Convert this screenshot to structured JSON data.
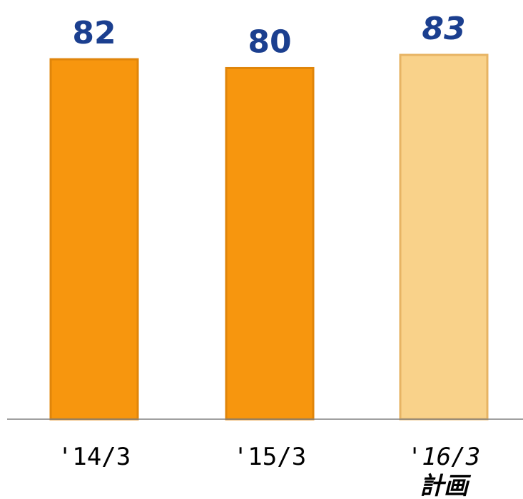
{
  "chart_data": {
    "type": "bar",
    "categories": [
      "'14/3",
      "'15/3",
      "'16/3"
    ],
    "category_sublabels": [
      "",
      "",
      "計画"
    ],
    "values": [
      82,
      80,
      83
    ],
    "value_labels": [
      "82",
      "80",
      "83"
    ],
    "planned": [
      false,
      false,
      true
    ],
    "title": "",
    "xlabel": "",
    "ylabel": "",
    "grid": false,
    "colors": {
      "bar": "#f7960e",
      "bar_edge": "#e0850a",
      "bar_planned": "#f9d28a",
      "bar_planned_edge": "#e7b464",
      "value_text": "#1b3f8f",
      "category_text": "#000000",
      "axis": "#808080"
    }
  }
}
